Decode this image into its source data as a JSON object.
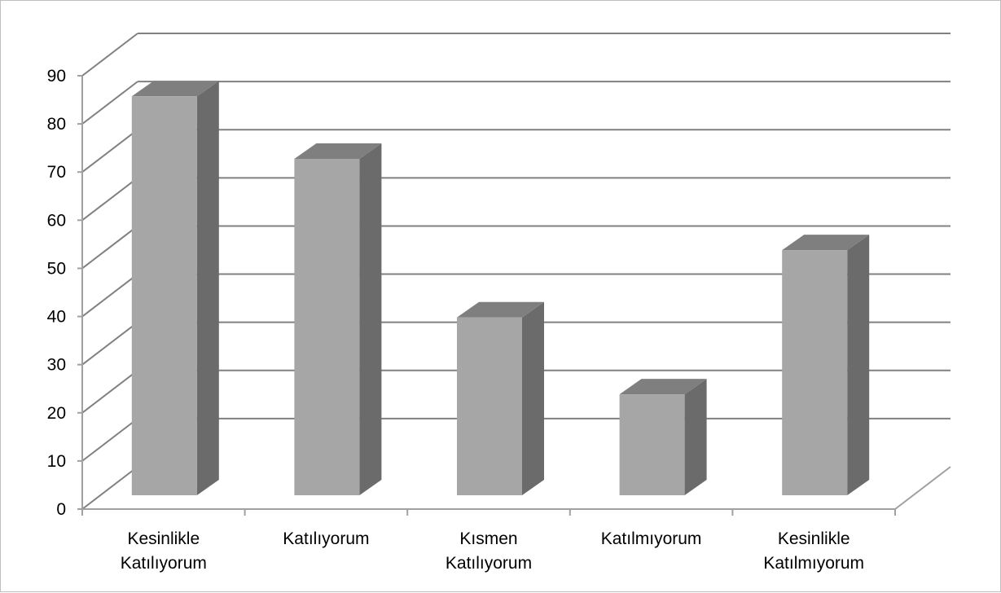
{
  "chart_data": {
    "type": "bar",
    "subtype": "3d-column",
    "title": "",
    "xlabel": "",
    "ylabel": "",
    "categories": [
      [
        "Kesinlikle",
        "Katılıyorum"
      ],
      [
        "Katılıyorum"
      ],
      [
        "Kısmen",
        "Katılıyorum"
      ],
      [
        "Katılmıyorum"
      ],
      [
        "Kesinlikle",
        "Katılmıyorum"
      ]
    ],
    "values": [
      83,
      70,
      37,
      21,
      51
    ],
    "ylim": [
      0,
      90
    ],
    "yticks": [
      "0",
      "10",
      "20",
      "30",
      "40",
      "50",
      "60",
      "70",
      "80",
      "90"
    ],
    "grid": true,
    "legend": "none",
    "colors": {
      "bar_front": "#a6a6a6",
      "bar_side": "#6b6b6b",
      "bar_top": "#7f7f7f",
      "gridline": "#808080",
      "axis": "#a0a0a0"
    }
  }
}
